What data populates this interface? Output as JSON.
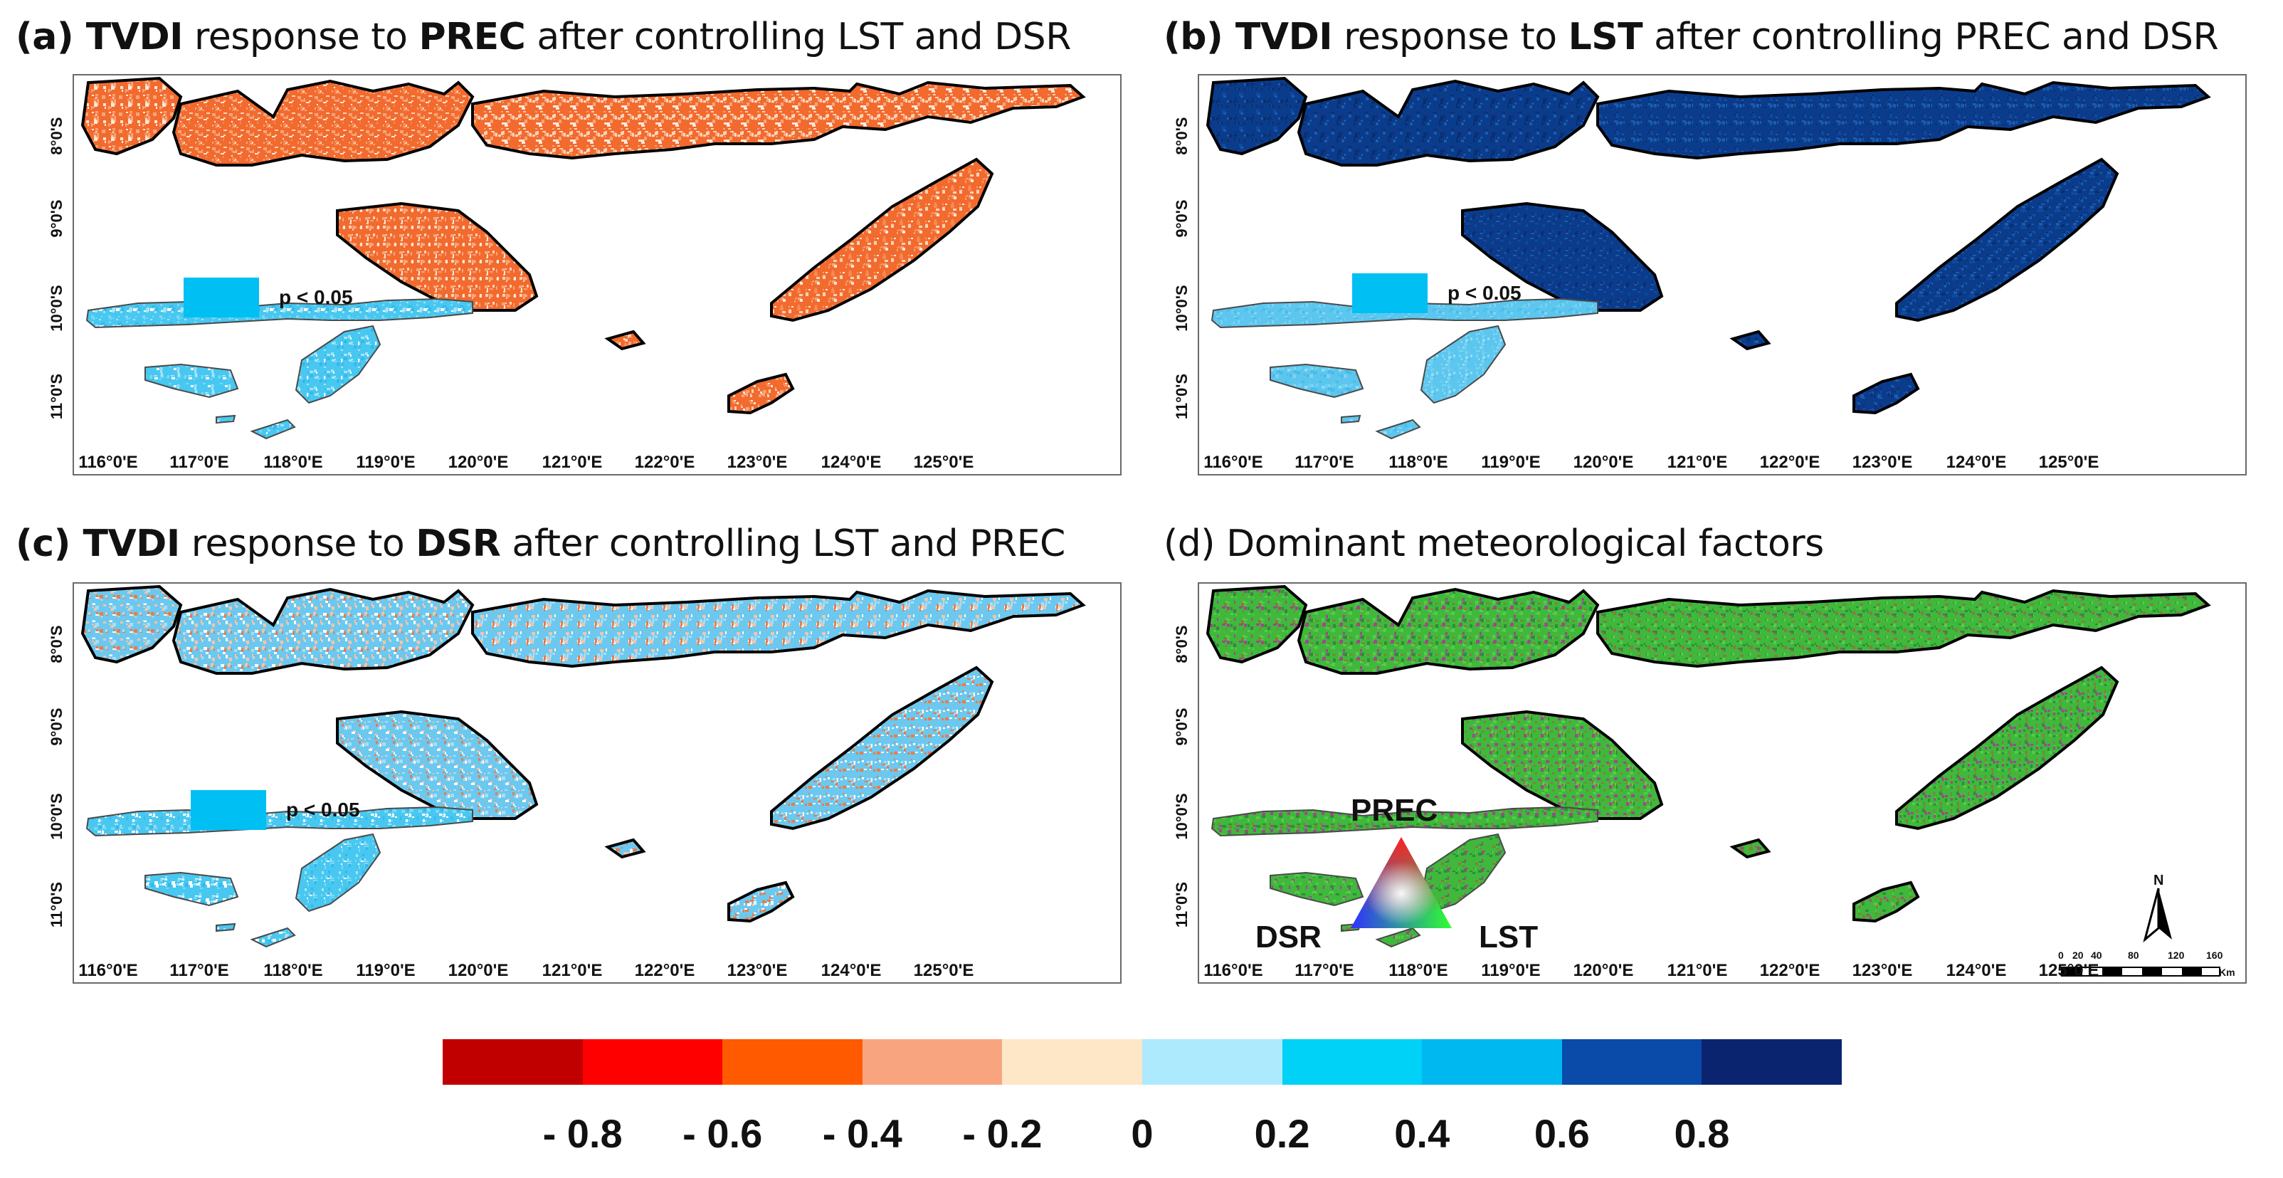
{
  "panels": [
    {
      "id": "a",
      "title_parts": [
        {
          "t": "(a) ",
          "b": true
        },
        {
          "t": "TVDI",
          "b": true
        },
        {
          "t": " response to ",
          "b": false
        },
        {
          "t": "PREC",
          "b": true
        },
        {
          "t": " after controlling LST and DSR",
          "b": false
        }
      ],
      "palette": [
        "#f26a2e",
        "#f58a55",
        "#f7a57a",
        "#fad3b8",
        "#fce8d8"
      ],
      "sig_label": "p < 0.05"
    },
    {
      "id": "b",
      "title_parts": [
        {
          "t": "(b) ",
          "b": true
        },
        {
          "t": "TVDI",
          "b": true
        },
        {
          "t": " response to ",
          "b": false
        },
        {
          "t": "LST",
          "b": true
        },
        {
          "t": " after controlling PREC and DSR",
          "b": false
        }
      ],
      "palette": [
        "#0b3c8c",
        "#0d4aa0",
        "#13307a",
        "#083070",
        "#1a5cb0"
      ],
      "sig_label": "p < 0.05"
    },
    {
      "id": "c",
      "title_parts": [
        {
          "t": "(c) ",
          "b": true
        },
        {
          "t": "TVDI",
          "b": true
        },
        {
          "t": " response to ",
          "b": false
        },
        {
          "t": "DSR",
          "b": true
        },
        {
          "t": " after controlling LST and PREC",
          "b": false
        }
      ],
      "palette": [
        "#6cc8ee",
        "#a9def5",
        "#f6c3a6",
        "#ee7a45",
        "#ffffff"
      ],
      "sig_label": "p < 0.05"
    },
    {
      "id": "d",
      "title_parts": [
        {
          "t": "(d) Dominant meteorological factors",
          "b": false
        }
      ],
      "palette": [
        "#3fb83c",
        "#5ac94a",
        "#2e8d3a",
        "#9c4a8a",
        "#8a7a40"
      ],
      "triangle": {
        "top": "PREC",
        "left": "DSR",
        "right": "LST"
      },
      "north": "N",
      "scale_ticks": [
        "0",
        "20",
        "40",
        "80",
        "120",
        "160"
      ],
      "scale_unit": "Km"
    }
  ],
  "lat_labels": [
    "8°0'S",
    "9°0'S",
    "10°0'S",
    "11°0'S"
  ],
  "lon_labels": [
    "116°0'E",
    "117°0'E",
    "118°0'E",
    "119°0'E",
    "120°0'E",
    "121°0'E",
    "122°0'E",
    "123°0'E",
    "124°0'E",
    "125°0'E"
  ],
  "colorbar": {
    "colors": [
      "#c00000",
      "#ff0000",
      "#ff5a00",
      "#f8a57f",
      "#fde7c7",
      "#aeeafd",
      "#00d1f7",
      "#00b8f0",
      "#0a4aa8",
      "#0a2470"
    ],
    "ticks": [
      "- 0.8",
      "- 0.6",
      "- 0.4",
      "- 0.2",
      "0",
      "0.2",
      "0.4",
      "0.6",
      "0.8"
    ]
  },
  "colors": {
    "significance": "#00bff3",
    "outline": "#000000",
    "frame": "#6a6a6a"
  }
}
